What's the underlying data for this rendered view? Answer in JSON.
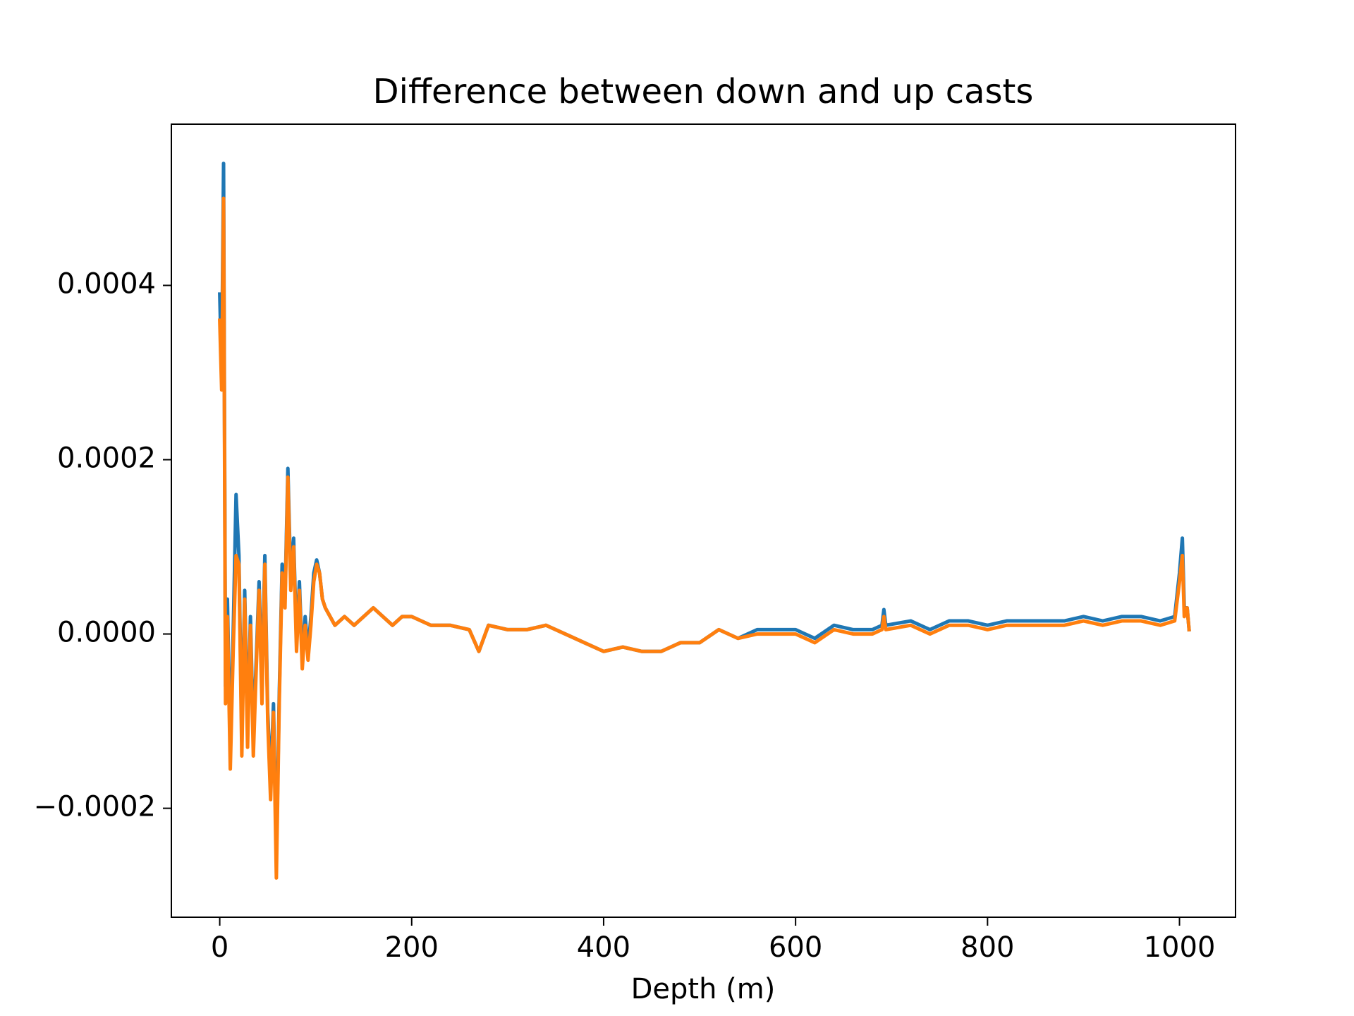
{
  "chart_data": {
    "type": "line",
    "title": "Difference between down and up casts",
    "xlabel": "Depth (m)",
    "x": [
      0,
      2,
      4,
      6,
      8,
      11,
      14,
      17,
      20,
      23,
      26,
      29,
      32,
      35,
      38,
      41,
      44,
      47,
      50,
      53,
      56,
      59,
      62,
      65,
      68,
      71,
      74,
      77,
      80,
      83,
      86,
      89,
      92,
      95,
      98,
      101,
      104,
      107,
      110,
      115,
      120,
      130,
      140,
      150,
      160,
      170,
      180,
      190,
      200,
      220,
      240,
      260,
      270,
      280,
      300,
      320,
      340,
      360,
      380,
      400,
      420,
      440,
      460,
      480,
      500,
      520,
      540,
      560,
      580,
      600,
      620,
      640,
      660,
      680,
      690,
      692,
      694,
      720,
      740,
      760,
      780,
      800,
      820,
      840,
      860,
      880,
      900,
      920,
      940,
      960,
      980,
      995,
      1000,
      1003,
      1005,
      1008,
      1010
    ],
    "series": [
      {
        "color": "#1f77b4",
        "values": [
          0.00039,
          0.0003,
          0.00054,
          -6e-05,
          4e-05,
          -0.00013,
          0,
          0.00016,
          9e-05,
          -0.00012,
          5e-05,
          -0.00011,
          2e-05,
          -0.00012,
          -3e-05,
          6e-05,
          -6e-05,
          9e-05,
          -9e-05,
          -0.00017,
          -8e-05,
          -0.00026,
          -7e-05,
          8e-05,
          4e-05,
          0.00019,
          6e-05,
          0.00011,
          -1e-05,
          6e-05,
          -3e-05,
          2e-05,
          -2e-05,
          2e-05,
          7e-05,
          8.5e-05,
          7e-05,
          4e-05,
          3e-05,
          2e-05,
          1e-05,
          2e-05,
          1e-05,
          2e-05,
          3e-05,
          2e-05,
          1e-05,
          2e-05,
          2e-05,
          1e-05,
          1e-05,
          5e-06,
          -2e-05,
          1e-05,
          5e-06,
          5e-06,
          1e-05,
          0,
          -1e-05,
          -2e-05,
          -1.5e-05,
          -2e-05,
          -2e-05,
          -1e-05,
          -1e-05,
          5e-06,
          -5e-06,
          5e-06,
          5e-06,
          5e-06,
          -5e-06,
          1e-05,
          5e-06,
          5e-06,
          1e-05,
          2.8e-05,
          1e-05,
          1.5e-05,
          5e-06,
          1.5e-05,
          1.5e-05,
          1e-05,
          1.5e-05,
          1.5e-05,
          1.5e-05,
          1.5e-05,
          2e-05,
          1.5e-05,
          2e-05,
          2e-05,
          1.5e-05,
          2e-05,
          7e-05,
          0.00011,
          3e-05,
          3e-05,
          5e-06
        ]
      },
      {
        "color": "#ff7f0e",
        "values": [
          0.00036,
          0.00028,
          0.0005,
          -8e-05,
          2e-05,
          -0.000155,
          -2e-05,
          9e-05,
          8e-05,
          -0.00014,
          4e-05,
          -0.00013,
          1e-05,
          -0.00014,
          -4e-05,
          5e-05,
          -8e-05,
          8e-05,
          -0.0001,
          -0.00019,
          -9e-05,
          -0.00028,
          -8e-05,
          7e-05,
          3e-05,
          0.00018,
          5e-05,
          0.0001,
          -2e-05,
          5e-05,
          -4e-05,
          1e-05,
          -3e-05,
          1e-05,
          6e-05,
          8e-05,
          7e-05,
          4e-05,
          3e-05,
          2e-05,
          1e-05,
          2e-05,
          1e-05,
          2e-05,
          3e-05,
          2e-05,
          1e-05,
          2e-05,
          2e-05,
          1e-05,
          1e-05,
          5e-06,
          -2e-05,
          1e-05,
          5e-06,
          5e-06,
          1e-05,
          0,
          -1e-05,
          -2e-05,
          -1.5e-05,
          -2e-05,
          -2e-05,
          -1e-05,
          -1e-05,
          5e-06,
          -5e-06,
          0,
          0,
          0,
          -1e-05,
          5e-06,
          0,
          0,
          5e-06,
          2e-05,
          5e-06,
          1e-05,
          0,
          1e-05,
          1e-05,
          5e-06,
          1e-05,
          1e-05,
          1e-05,
          1e-05,
          1.5e-05,
          1e-05,
          1.5e-05,
          1.5e-05,
          1e-05,
          1.5e-05,
          6e-05,
          9e-05,
          2e-05,
          3e-05,
          5e-06
        ]
      }
    ],
    "xlim": [
      -50.4,
      1058.4
    ],
    "xticks": [
      0,
      200,
      400,
      600,
      800,
      1000
    ],
    "ylim": [
      -0.000325,
      0.000585
    ],
    "yticks": [
      {
        "value": -0.0002,
        "label": "−0.0002"
      },
      {
        "value": 0,
        "label": "0.0000"
      },
      {
        "value": 0.0002,
        "label": "0.0002"
      },
      {
        "value": 0.0004,
        "label": "0.0004"
      }
    ]
  }
}
